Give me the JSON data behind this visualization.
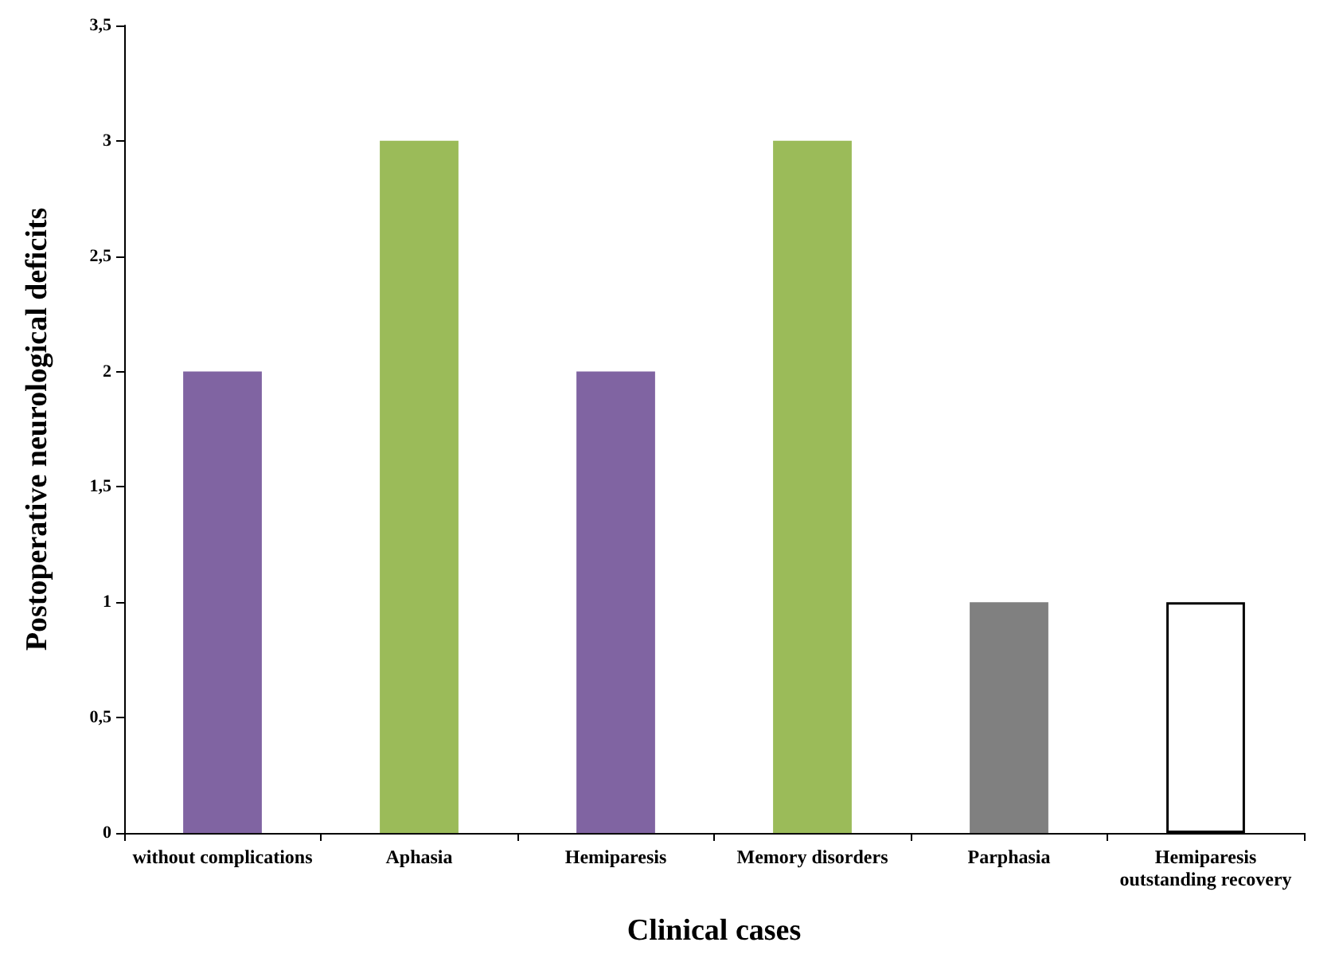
{
  "chart_data": {
    "type": "bar",
    "xlabel": "Clinical cases",
    "ylabel": "Postoperative neurological deficits",
    "categories": [
      "without complications",
      "Aphasia",
      "Hemiparesis",
      "Memory disorders",
      "Parphasia",
      "Hemiparesis\noutstanding recovery"
    ],
    "values": [
      2,
      3,
      2,
      3,
      1,
      1
    ],
    "colors": [
      "#8064a2",
      "#9bbb59",
      "#8064a2",
      "#9bbb59",
      "#808080",
      "#ffffff"
    ],
    "ylim": [
      0,
      3.5
    ],
    "yticks": [
      0,
      {
        "value": 0.5,
        "label": "0,5"
      },
      1,
      {
        "value": 1.5,
        "label": "1,5"
      },
      2,
      {
        "value": 2.5,
        "label": "2,5"
      },
      3,
      {
        "value": 3.5,
        "label": "3,5"
      }
    ],
    "grid": false
  }
}
